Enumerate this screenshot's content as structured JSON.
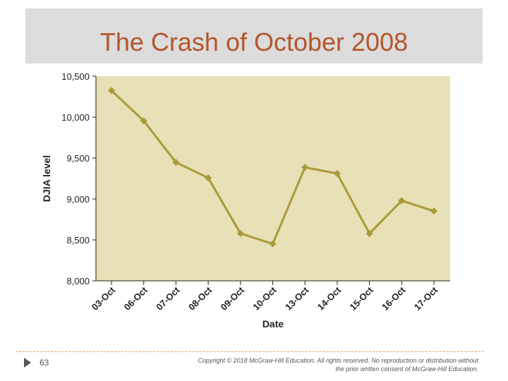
{
  "slide": {
    "title": "The Crash of October 2008",
    "page_number": "63",
    "copyright_line1": "Copyright © 2018 McGraw-Hill Education. All rights reserved. No reproduction or distribution without",
    "copyright_line2": "the prior written consent of McGraw-Hill Education."
  },
  "colors": {
    "title": "#b5552a",
    "title_band": "#dcdcdc",
    "plot_background": "#e8e0b6",
    "series_line": "#a89a38",
    "footer_rule": "#d9a066"
  },
  "chart_data": {
    "type": "line",
    "title": "",
    "xlabel": "Date",
    "ylabel": "DJIA level",
    "categories": [
      "03-Oct",
      "06-Oct",
      "07-Oct",
      "08-Oct",
      "09-Oct",
      "10-Oct",
      "13-Oct",
      "14-Oct",
      "15-Oct",
      "16-Oct",
      "17-Oct"
    ],
    "series": [
      {
        "values": [
          10325,
          9955,
          9447,
          9258,
          8579,
          8451,
          9387,
          9311,
          8578,
          8979,
          8852
        ]
      }
    ],
    "ylim": [
      8000,
      10500
    ],
    "yticks": [
      8000,
      8500,
      9000,
      9500,
      10000,
      10500
    ],
    "ytick_labels": [
      "8,000",
      "8,500",
      "9,000",
      "9,500",
      "10,000",
      "10,500"
    ],
    "grid": false,
    "legend": "none"
  }
}
